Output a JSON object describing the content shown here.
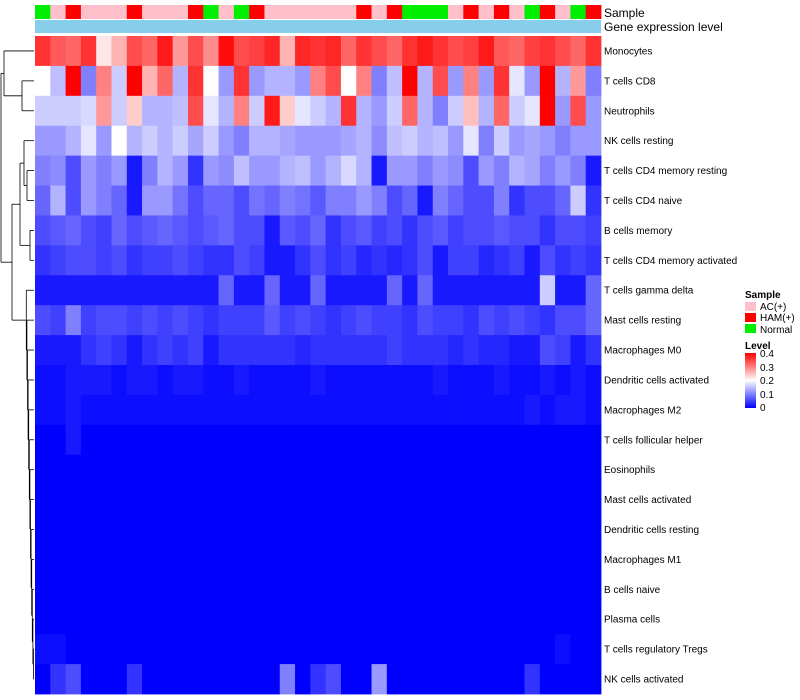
{
  "chart_data": {
    "type": "heatmap",
    "annotation_tracks": [
      {
        "name": "Sample"
      },
      {
        "name": "Gene expression level"
      }
    ],
    "rows": [
      "Monocytes",
      "T cells CD8",
      "Neutrophils",
      "NK cells resting",
      "T cells CD4 memory resting",
      "T cells CD4 naive",
      "B cells memory",
      "T cells CD4 memory activated",
      "T cells gamma delta",
      "Mast cells resting",
      "Macrophages M0",
      "Dendritic cells activated",
      "Macrophages M2",
      "T cells follicular helper",
      "Eosinophils",
      "Mast cells activated",
      "Dendritic cells resting",
      "Macrophages M1",
      "B cells naive",
      "Plasma cells",
      "T cells regulatory  Tregs",
      "NK cells activated"
    ],
    "sample_groups": [
      "Normal",
      "AC(+)",
      "HAM(+)",
      "AC(+)",
      "AC(+)",
      "AC(+)",
      "HAM(+)",
      "AC(+)",
      "AC(+)",
      "AC(+)",
      "HAM(+)",
      "Normal",
      "AC(+)",
      "Normal",
      "HAM(+)",
      "AC(+)",
      "AC(+)",
      "AC(+)",
      "AC(+)",
      "AC(+)",
      "AC(+)",
      "HAM(+)",
      "AC(+)",
      "HAM(+)",
      "Normal",
      "Normal",
      "Normal",
      "AC(+)",
      "HAM(+)",
      "AC(+)",
      "HAM(+)",
      "AC(+)",
      "Normal",
      "HAM(+)",
      "AC(+)",
      "Normal",
      "HAM(+)"
    ],
    "values": [
      [
        0.36,
        0.33,
        0.32,
        0.36,
        0.22,
        0.26,
        0.34,
        0.32,
        0.38,
        0.28,
        0.34,
        0.29,
        0.39,
        0.34,
        0.35,
        0.37,
        0.26,
        0.37,
        0.36,
        0.37,
        0.32,
        0.36,
        0.34,
        0.32,
        0.36,
        0.38,
        0.36,
        0.34,
        0.35,
        0.38,
        0.33,
        0.32,
        0.35,
        0.36,
        0.34,
        0.32,
        0.36
      ],
      [
        0.2,
        0.15,
        0.4,
        0.1,
        0.3,
        0.16,
        0.4,
        0.26,
        0.32,
        0.14,
        0.36,
        0.2,
        0.12,
        0.36,
        0.12,
        0.14,
        0.14,
        0.12,
        0.3,
        0.34,
        0.2,
        0.3,
        0.1,
        0.15,
        0.4,
        0.14,
        0.34,
        0.12,
        0.3,
        0.12,
        0.36,
        0.18,
        0.12,
        0.4,
        0.14,
        0.28,
        0.1
      ],
      [
        0.16,
        0.16,
        0.16,
        0.17,
        0.28,
        0.16,
        0.24,
        0.14,
        0.14,
        0.15,
        0.34,
        0.18,
        0.14,
        0.3,
        0.16,
        0.38,
        0.24,
        0.18,
        0.16,
        0.14,
        0.36,
        0.14,
        0.12,
        0.16,
        0.32,
        0.14,
        0.1,
        0.16,
        0.25,
        0.14,
        0.32,
        0.16,
        0.18,
        0.4,
        0.12,
        0.34,
        0.12
      ],
      [
        0.12,
        0.12,
        0.14,
        0.18,
        0.12,
        0.2,
        0.14,
        0.16,
        0.14,
        0.16,
        0.13,
        0.16,
        0.12,
        0.1,
        0.14,
        0.14,
        0.13,
        0.12,
        0.12,
        0.12,
        0.13,
        0.14,
        0.11,
        0.15,
        0.16,
        0.14,
        0.15,
        0.12,
        0.18,
        0.1,
        0.16,
        0.12,
        0.13,
        0.12,
        0.1,
        0.12,
        0.12
      ],
      [
        0.1,
        0.11,
        0.06,
        0.12,
        0.1,
        0.12,
        0.02,
        0.1,
        0.14,
        0.12,
        0.04,
        0.12,
        0.11,
        0.15,
        0.12,
        0.12,
        0.14,
        0.15,
        0.12,
        0.14,
        0.17,
        0.14,
        0.02,
        0.12,
        0.12,
        0.1,
        0.12,
        0.11,
        0.06,
        0.12,
        0.1,
        0.14,
        0.13,
        0.1,
        0.12,
        0.1,
        0.02
      ],
      [
        0.08,
        0.14,
        0.06,
        0.12,
        0.1,
        0.08,
        0.02,
        0.12,
        0.12,
        0.09,
        0.06,
        0.08,
        0.08,
        0.06,
        0.09,
        0.08,
        0.1,
        0.09,
        0.07,
        0.1,
        0.1,
        0.12,
        0.1,
        0.06,
        0.08,
        0.02,
        0.1,
        0.08,
        0.06,
        0.06,
        0.1,
        0.04,
        0.06,
        0.06,
        0.08,
        0.16,
        0.04
      ],
      [
        0.06,
        0.07,
        0.08,
        0.06,
        0.05,
        0.08,
        0.06,
        0.07,
        0.08,
        0.07,
        0.06,
        0.07,
        0.08,
        0.06,
        0.06,
        0.02,
        0.07,
        0.06,
        0.08,
        0.04,
        0.06,
        0.07,
        0.05,
        0.06,
        0.04,
        0.06,
        0.07,
        0.05,
        0.06,
        0.06,
        0.07,
        0.06,
        0.06,
        0.04,
        0.06,
        0.06,
        0.05
      ],
      [
        0.04,
        0.05,
        0.06,
        0.06,
        0.05,
        0.06,
        0.04,
        0.05,
        0.05,
        0.06,
        0.05,
        0.04,
        0.04,
        0.06,
        0.05,
        0.02,
        0.02,
        0.04,
        0.06,
        0.04,
        0.05,
        0.03,
        0.04,
        0.03,
        0.04,
        0.06,
        0.02,
        0.05,
        0.05,
        0.03,
        0.04,
        0.05,
        0.02,
        0.06,
        0.04,
        0.05,
        0.04
      ],
      [
        0.02,
        0.02,
        0.02,
        0.02,
        0.02,
        0.02,
        0.02,
        0.02,
        0.02,
        0.02,
        0.02,
        0.02,
        0.08,
        0.02,
        0.02,
        0.08,
        0.02,
        0.02,
        0.08,
        0.02,
        0.02,
        0.02,
        0.02,
        0.08,
        0.02,
        0.08,
        0.02,
        0.02,
        0.02,
        0.02,
        0.02,
        0.02,
        0.02,
        0.16,
        0.02,
        0.02,
        0.08
      ],
      [
        0.06,
        0.05,
        0.1,
        0.05,
        0.06,
        0.06,
        0.05,
        0.06,
        0.05,
        0.06,
        0.05,
        0.04,
        0.05,
        0.05,
        0.05,
        0.07,
        0.05,
        0.06,
        0.05,
        0.04,
        0.05,
        0.06,
        0.05,
        0.05,
        0.04,
        0.06,
        0.05,
        0.05,
        0.04,
        0.06,
        0.05,
        0.06,
        0.05,
        0.04,
        0.06,
        0.06,
        0.08
      ],
      [
        0.02,
        0.02,
        0.02,
        0.04,
        0.05,
        0.04,
        0.02,
        0.04,
        0.05,
        0.04,
        0.05,
        0.02,
        0.04,
        0.04,
        0.04,
        0.04,
        0.04,
        0.03,
        0.04,
        0.04,
        0.04,
        0.04,
        0.04,
        0.05,
        0.04,
        0.04,
        0.04,
        0.03,
        0.04,
        0.03,
        0.03,
        0.02,
        0.02,
        0.06,
        0.05,
        0.02,
        0.04
      ],
      [
        0.01,
        0.01,
        0.02,
        0.02,
        0.02,
        0.01,
        0.02,
        0.02,
        0.01,
        0.02,
        0.02,
        0.01,
        0.01,
        0.02,
        0.01,
        0.01,
        0.01,
        0.01,
        0.02,
        0.01,
        0.01,
        0.01,
        0.01,
        0.01,
        0.01,
        0.01,
        0.02,
        0.01,
        0.01,
        0.01,
        0.02,
        0.01,
        0.01,
        0.02,
        0.01,
        0.02,
        0.01
      ],
      [
        0.01,
        0.01,
        0.02,
        0.01,
        0.01,
        0.01,
        0.01,
        0.01,
        0.01,
        0.01,
        0.01,
        0.01,
        0.01,
        0.01,
        0.01,
        0.01,
        0.01,
        0.01,
        0.01,
        0.01,
        0.01,
        0.01,
        0.01,
        0.01,
        0.01,
        0.01,
        0.01,
        0.01,
        0.01,
        0.01,
        0.01,
        0.01,
        0.02,
        0.01,
        0.02,
        0.02,
        0.01
      ],
      [
        0.0,
        0.0,
        0.02,
        0.0,
        0.0,
        0.0,
        0.0,
        0.0,
        0.0,
        0.0,
        0.0,
        0.0,
        0.0,
        0.0,
        0.0,
        0.0,
        0.0,
        0.0,
        0.0,
        0.0,
        0.0,
        0.0,
        0.0,
        0.0,
        0.0,
        0.0,
        0.0,
        0.0,
        0.0,
        0.0,
        0.0,
        0.0,
        0.0,
        0.0,
        0.0,
        0.0,
        0.0
      ],
      [
        0.0,
        0.0,
        0.0,
        0.0,
        0.0,
        0.0,
        0.0,
        0.0,
        0.0,
        0.0,
        0.0,
        0.0,
        0.0,
        0.0,
        0.0,
        0.0,
        0.0,
        0.0,
        0.0,
        0.0,
        0.0,
        0.0,
        0.0,
        0.0,
        0.0,
        0.0,
        0.0,
        0.0,
        0.0,
        0.0,
        0.0,
        0.0,
        0.0,
        0.0,
        0.0,
        0.0,
        0.0
      ],
      [
        0.0,
        0.0,
        0.0,
        0.0,
        0.0,
        0.0,
        0.0,
        0.0,
        0.0,
        0.0,
        0.0,
        0.0,
        0.0,
        0.0,
        0.0,
        0.0,
        0.0,
        0.0,
        0.0,
        0.0,
        0.0,
        0.0,
        0.0,
        0.0,
        0.0,
        0.0,
        0.0,
        0.0,
        0.0,
        0.0,
        0.0,
        0.0,
        0.0,
        0.0,
        0.0,
        0.0,
        0.0
      ],
      [
        0.0,
        0.0,
        0.0,
        0.0,
        0.0,
        0.0,
        0.0,
        0.0,
        0.0,
        0.0,
        0.0,
        0.0,
        0.0,
        0.0,
        0.0,
        0.0,
        0.0,
        0.0,
        0.0,
        0.0,
        0.0,
        0.0,
        0.0,
        0.0,
        0.0,
        0.0,
        0.0,
        0.0,
        0.0,
        0.0,
        0.0,
        0.0,
        0.0,
        0.0,
        0.0,
        0.0,
        0.0
      ],
      [
        0.0,
        0.0,
        0.0,
        0.0,
        0.0,
        0.0,
        0.0,
        0.0,
        0.0,
        0.0,
        0.0,
        0.0,
        0.0,
        0.0,
        0.0,
        0.0,
        0.0,
        0.0,
        0.0,
        0.0,
        0.0,
        0.0,
        0.0,
        0.0,
        0.0,
        0.0,
        0.0,
        0.0,
        0.0,
        0.0,
        0.0,
        0.0,
        0.0,
        0.0,
        0.0,
        0.0,
        0.0
      ],
      [
        0.0,
        0.0,
        0.0,
        0.0,
        0.0,
        0.0,
        0.0,
        0.0,
        0.0,
        0.0,
        0.0,
        0.0,
        0.0,
        0.0,
        0.0,
        0.0,
        0.0,
        0.0,
        0.0,
        0.0,
        0.0,
        0.0,
        0.0,
        0.0,
        0.0,
        0.0,
        0.0,
        0.0,
        0.0,
        0.0,
        0.0,
        0.0,
        0.0,
        0.0,
        0.0,
        0.0,
        0.0
      ],
      [
        0.0,
        0.0,
        0.0,
        0.0,
        0.0,
        0.0,
        0.0,
        0.0,
        0.0,
        0.0,
        0.0,
        0.0,
        0.0,
        0.0,
        0.0,
        0.0,
        0.0,
        0.0,
        0.0,
        0.0,
        0.0,
        0.0,
        0.0,
        0.0,
        0.0,
        0.0,
        0.0,
        0.0,
        0.0,
        0.0,
        0.0,
        0.0,
        0.0,
        0.0,
        0.0,
        0.0,
        0.0
      ],
      [
        0.01,
        0.01,
        0.0,
        0.0,
        0.0,
        0.0,
        0.0,
        0.0,
        0.0,
        0.0,
        0.0,
        0.0,
        0.0,
        0.0,
        0.0,
        0.0,
        0.0,
        0.0,
        0.0,
        0.0,
        0.0,
        0.0,
        0.0,
        0.0,
        0.0,
        0.0,
        0.0,
        0.0,
        0.0,
        0.0,
        0.0,
        0.0,
        0.0,
        0.0,
        0.01,
        0.0,
        0.0
      ],
      [
        0.0,
        0.04,
        0.06,
        0.0,
        0.0,
        0.0,
        0.04,
        0.0,
        0.0,
        0.0,
        0.0,
        0.0,
        0.0,
        0.0,
        0.0,
        0.0,
        0.1,
        0.0,
        0.04,
        0.06,
        0.0,
        0.0,
        0.12,
        0.0,
        0.0,
        0.0,
        0.0,
        0.0,
        0.0,
        0.0,
        0.0,
        0.0,
        0.04,
        0.0,
        0.0,
        0.0,
        0.0
      ]
    ],
    "color_scale": {
      "min": 0,
      "max": 0.4,
      "low": "#0000ff",
      "mid": "#ffffff",
      "high": "#ff0000",
      "midpoint": 0.2
    },
    "legends": {
      "sample": {
        "title": "Sample",
        "items": [
          {
            "label": "AC(+)",
            "color": "#ffc0cb"
          },
          {
            "label": "HAM(+)",
            "color": "#ff0000"
          },
          {
            "label": "Normal",
            "color": "#00ee00"
          }
        ]
      },
      "level": {
        "title": "Level",
        "ticks": [
          "0.4",
          "0.3",
          "0.2",
          "0.1",
          "0"
        ]
      }
    },
    "gene_expression_color": "#87ceeb",
    "dendrogram": "rows"
  }
}
